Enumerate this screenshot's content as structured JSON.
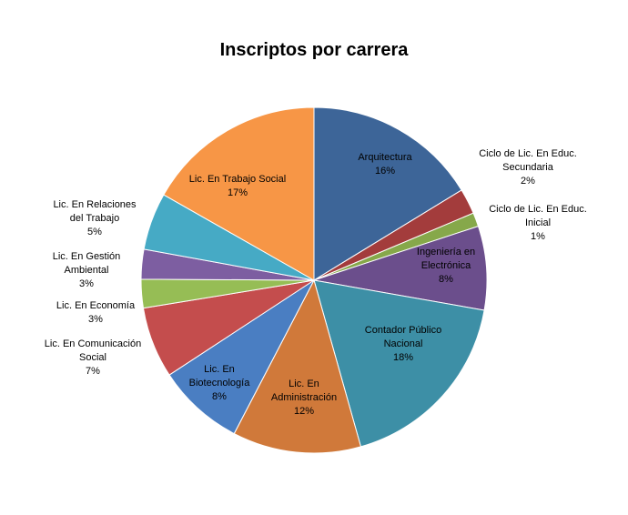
{
  "chart_data": {
    "type": "pie",
    "title": "Inscriptos por carrera",
    "slices": [
      {
        "lines": [
          "Arquitectura",
          "16%"
        ],
        "value": 16.4,
        "color": "#3D6598"
      },
      {
        "lines": [
          "Ciclo de Lic. En Educ.",
          "Secundaria",
          "2%"
        ],
        "value": 2.4,
        "color": "#A33C3C"
      },
      {
        "lines": [
          "Ciclo de Lic. En Educ.",
          "Inicial",
          "1%"
        ],
        "value": 1.3,
        "color": "#86A84A"
      },
      {
        "lines": [
          "Ingeniería en",
          "Electrónica",
          "8%"
        ],
        "value": 7.9,
        "color": "#6B4E8C"
      },
      {
        "lines": [
          "Contador Público",
          "Nacional",
          "18%"
        ],
        "value": 18.0,
        "color": "#3D8FA6"
      },
      {
        "lines": [
          "Lic. En",
          "Administración",
          "12%"
        ],
        "value": 12.1,
        "color": "#D0793A"
      },
      {
        "lines": [
          "Lic. En",
          "Biotecnología",
          "8%"
        ],
        "value": 8.2,
        "color": "#4A7EC2"
      },
      {
        "lines": [
          "Lic. En Comunicación",
          "Social",
          "7%"
        ],
        "value": 6.7,
        "color": "#C44D4D"
      },
      {
        "lines": [
          "Lic. En Economía",
          "3%"
        ],
        "value": 2.7,
        "color": "#96BD55"
      },
      {
        "lines": [
          "Lic. En Gestión",
          "Ambiental",
          "3%"
        ],
        "value": 2.8,
        "color": "#7D5EA1"
      },
      {
        "lines": [
          "Lic. En Relaciones",
          "del Trabajo",
          "5%"
        ],
        "value": 5.4,
        "color": "#46AAC5"
      },
      {
        "lines": [
          "Lic. En Trabajo Social",
          "17%"
        ],
        "value": 16.9,
        "color": "#F79646"
      }
    ]
  }
}
